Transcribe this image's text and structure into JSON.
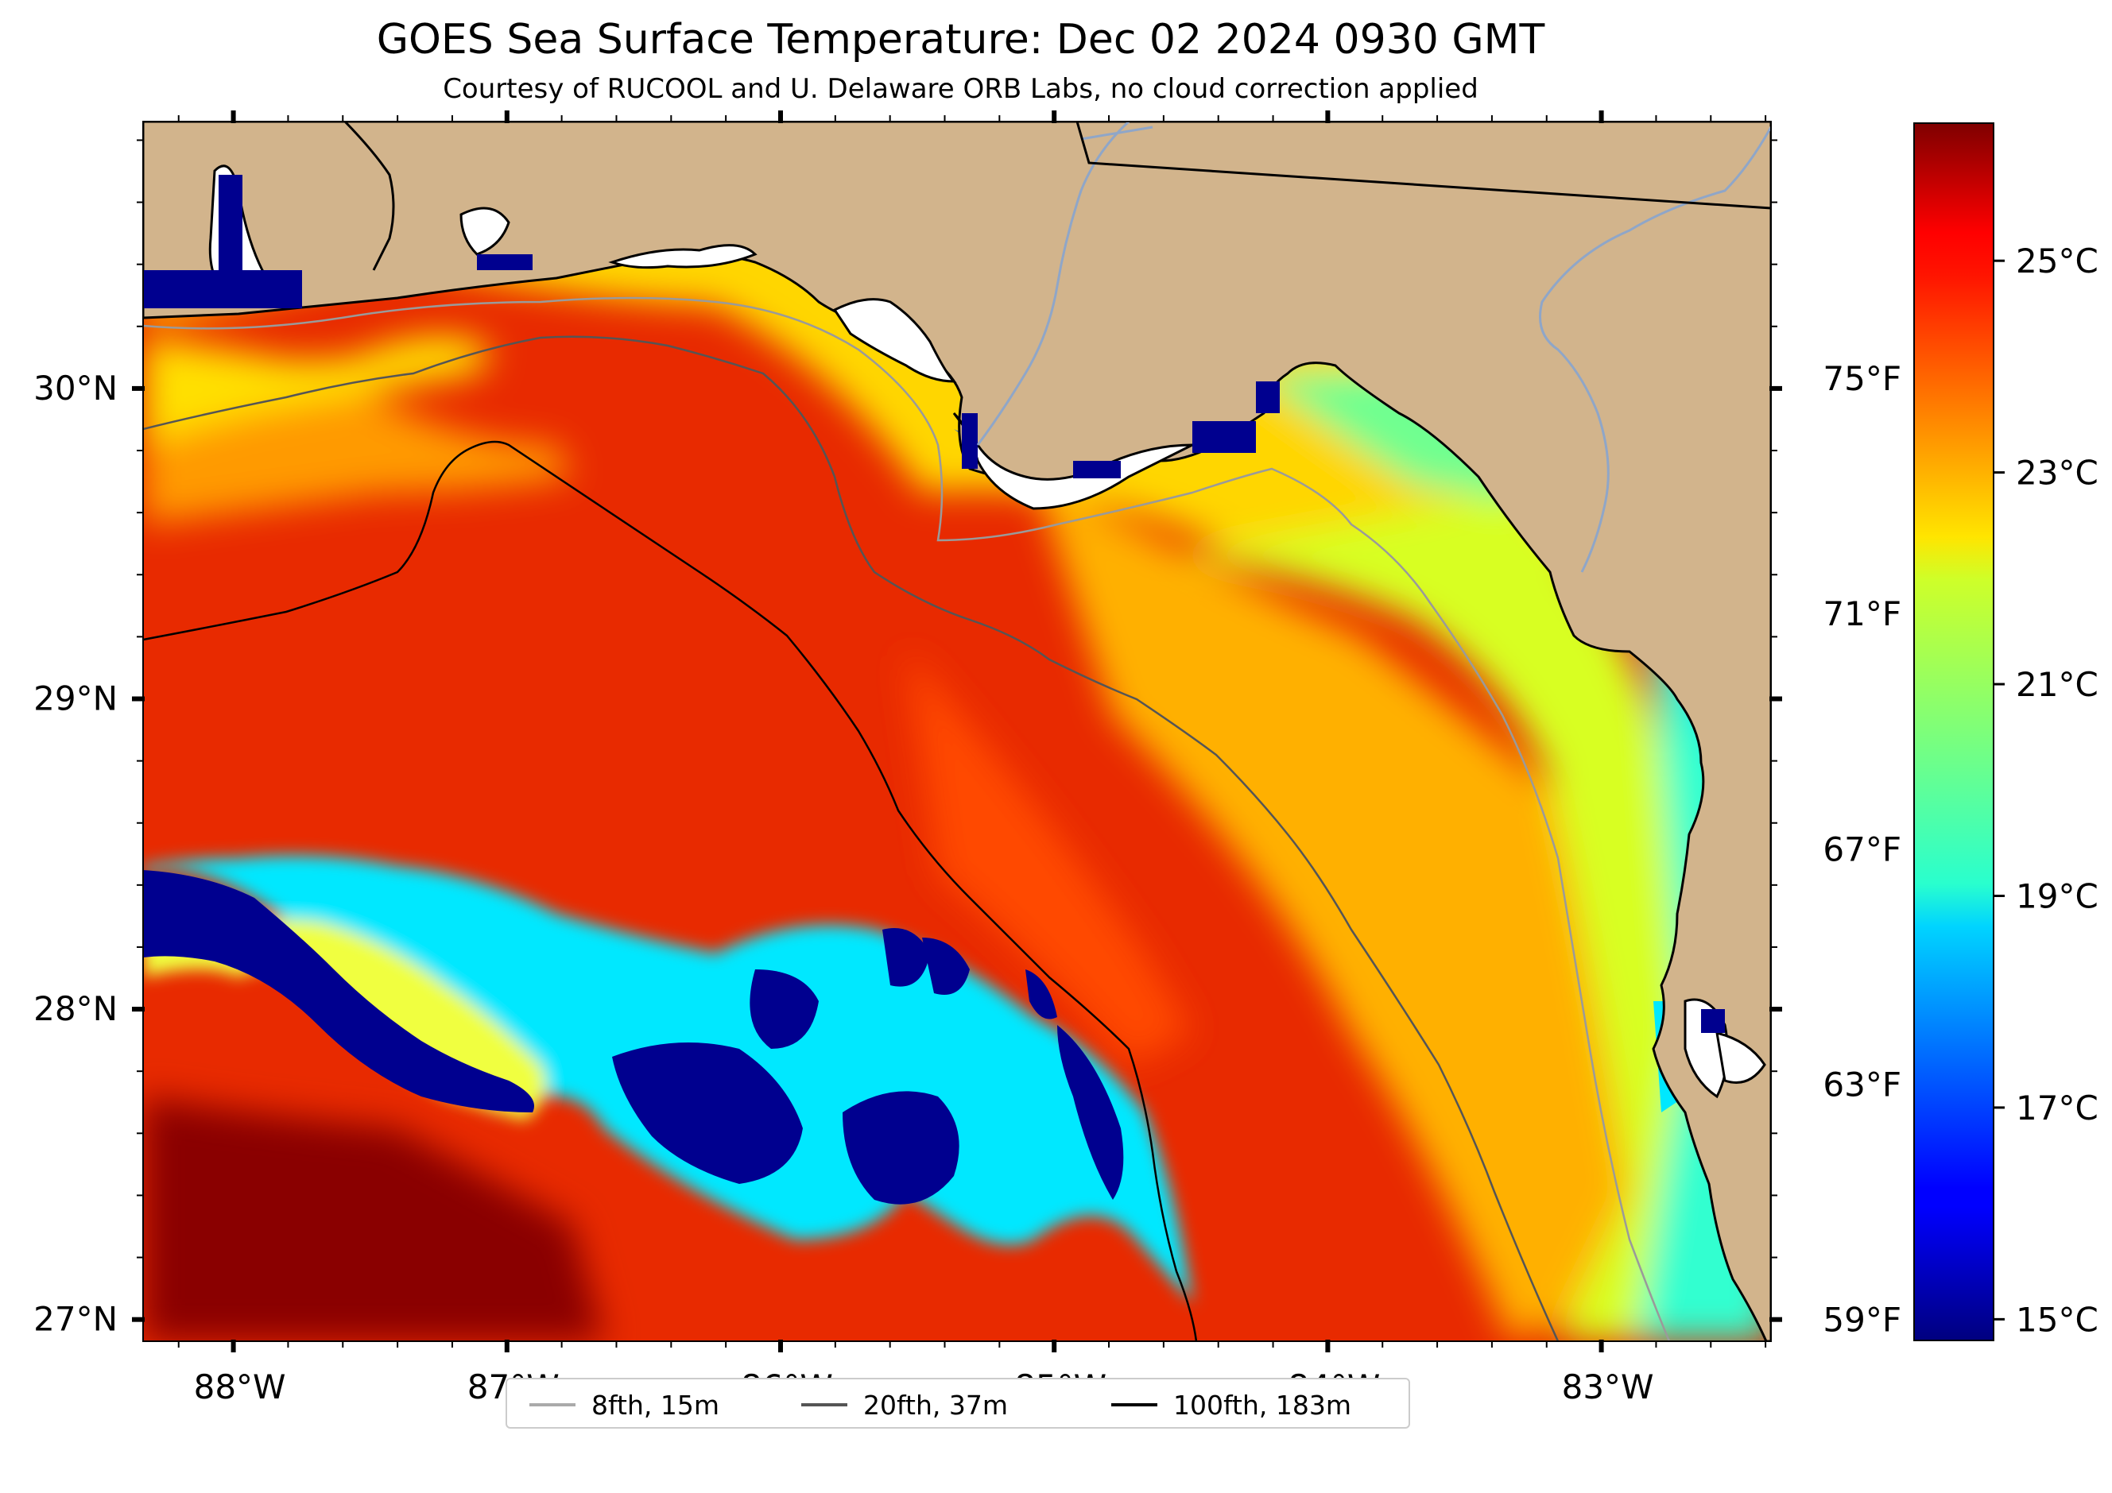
{
  "title": "GOES Sea Surface Temperature: Dec 02 2024 0930 GMT",
  "subtitle": "Courtesy of RUCOOL and U. Delaware ORB Labs, no cloud correction applied",
  "map": {
    "extent": {
      "lon": [
        -88.33,
        -82.38
      ],
      "lat": [
        26.93,
        30.86
      ]
    },
    "lon_ticks": [
      {
        "value": -88,
        "label": "88°W"
      },
      {
        "value": -87,
        "label": "87°W"
      },
      {
        "value": -86,
        "label": "86°W"
      },
      {
        "value": -85,
        "label": "85°W"
      },
      {
        "value": -84,
        "label": "84°W"
      },
      {
        "value": -83,
        "label": "83°W"
      }
    ],
    "lat_ticks": [
      {
        "value": 30,
        "label": "30°N"
      },
      {
        "value": 29,
        "label": "29°N"
      },
      {
        "value": 28,
        "label": "28°N"
      },
      {
        "value": 27,
        "label": "27°N"
      }
    ],
    "land_color": "#d2b48c",
    "no_data_color": "#ffffff"
  },
  "colorbar": {
    "colormap": "jet",
    "range_c": [
      14.8,
      26.3
    ],
    "celsius_ticks": [
      {
        "value": 25,
        "label": "25°C"
      },
      {
        "value": 23,
        "label": "23°C"
      },
      {
        "value": 21,
        "label": "21°C"
      },
      {
        "value": 19,
        "label": "19°C"
      },
      {
        "value": 17,
        "label": "17°C"
      },
      {
        "value": 15,
        "label": "15°C"
      }
    ],
    "fahrenheit_ticks": [
      {
        "value": 75,
        "label": "75°F"
      },
      {
        "value": 71,
        "label": "71°F"
      },
      {
        "value": 67,
        "label": "67°F"
      },
      {
        "value": 63,
        "label": "63°F"
      },
      {
        "value": 59,
        "label": "59°F"
      }
    ]
  },
  "legend": {
    "items": [
      {
        "label": "8fth, 15m",
        "color": "#aaaaaa"
      },
      {
        "label": "20fth, 37m",
        "color": "#555555"
      },
      {
        "label": "100fth, 183m",
        "color": "#000000"
      }
    ]
  }
}
